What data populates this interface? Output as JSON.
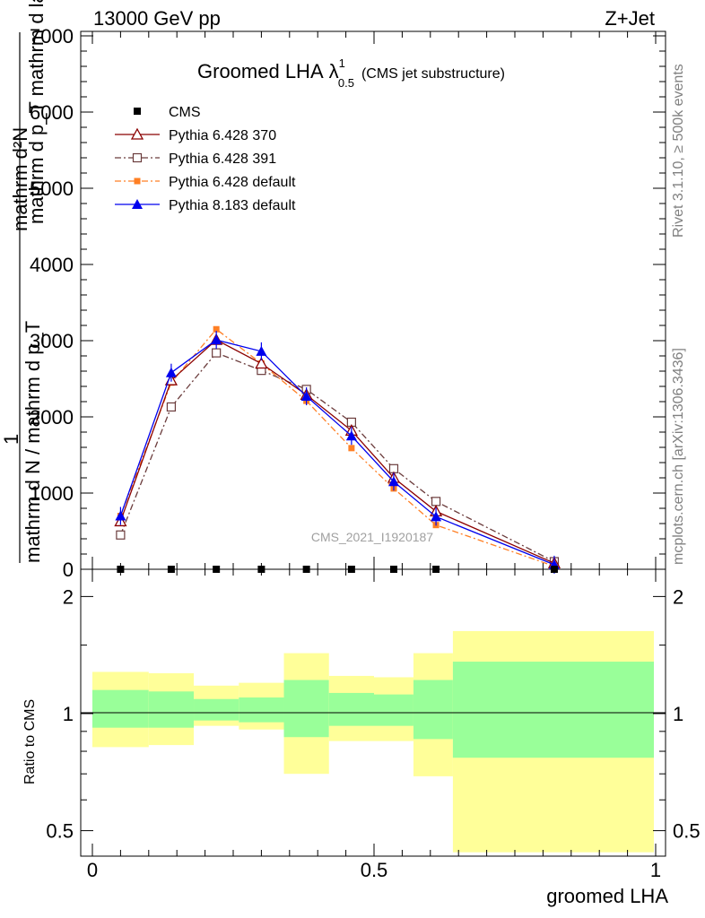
{
  "header": {
    "left": "13000 GeV pp",
    "right": "Z+Jet"
  },
  "side_labels": {
    "rivet": "Rivet 3.1.10, ≥ 500k events",
    "mcplots": "mcplots.cern.ch [arXiv:1306.3436]"
  },
  "watermark": "CMS_2021_I1920187",
  "main_title": {
    "text": "Groomed LHA",
    "lambda": "λ",
    "sup": "1",
    "sub": "0.5",
    "note": "(CMS jet substructure)"
  },
  "ylabel_main": {
    "line1": "mathrm d²N",
    "line2": "mathrm d p_T mathrm d lambda",
    "line3": "1",
    "line4": "mathrm d N / mathrm d p_T"
  },
  "ratio_ylabel": "Ratio to CMS",
  "xlabel": "groomed LHA",
  "colors": {
    "cms": "#000000",
    "p370": "#8b0000",
    "p391": "#6b3c3c",
    "p6def": "#ff7f24",
    "p8": "#0000ee",
    "band_outer": "#ffff99",
    "band_inner": "#99ff99"
  },
  "chart_data": {
    "type": "line",
    "x": [
      0.05,
      0.14,
      0.22,
      0.3,
      0.38,
      0.46,
      0.535,
      0.61,
      0.82
    ],
    "xlim": [
      -0.02,
      1.0
    ],
    "ylim": [
      0,
      7000
    ],
    "yticks": [
      {
        "v": 0,
        "label": "0"
      },
      {
        "v": 1000,
        "label": "1000"
      },
      {
        "v": 2000,
        "label": "2000"
      },
      {
        "v": 3000,
        "label": "3000"
      },
      {
        "v": 4000,
        "label": "4000"
      },
      {
        "v": 5000,
        "label": "5000"
      },
      {
        "v": 6000,
        "label": "6000"
      },
      {
        "v": 7000,
        "label": "7000"
      }
    ],
    "xticks": [
      {
        "v": 0,
        "label": "0"
      },
      {
        "v": 0.5,
        "label": "0.5"
      },
      {
        "v": 1,
        "label": "1"
      }
    ],
    "series": [
      {
        "name": "CMS",
        "key": "cms",
        "values": [
          0,
          0,
          0,
          0,
          0,
          0,
          0,
          0,
          0
        ]
      },
      {
        "name": "Pythia 6.428 370",
        "key": "p370",
        "values": [
          630,
          2480,
          3010,
          2700,
          2290,
          1820,
          1200,
          760,
          80
        ]
      },
      {
        "name": "Pythia 6.428 391",
        "key": "p391",
        "values": [
          450,
          2130,
          2840,
          2610,
          2360,
          1930,
          1320,
          890,
          100
        ]
      },
      {
        "name": "Pythia 6.428 default",
        "key": "p6def",
        "values": [
          700,
          2450,
          3150,
          2700,
          2210,
          1590,
          1060,
          580,
          40
        ]
      },
      {
        "name": "Pythia 8.183 default",
        "key": "p8",
        "values": [
          700,
          2580,
          3010,
          2860,
          2270,
          1750,
          1150,
          690,
          60
        ]
      }
    ],
    "ratio": {
      "ylim_log": [
        0.43,
        2.35
      ],
      "yticks": [
        {
          "v": 0.5,
          "label": "0.5"
        },
        {
          "v": 1,
          "label": "1"
        },
        {
          "v": 2,
          "label": "2"
        }
      ],
      "bins": [
        {
          "x0": 0.0,
          "x1": 0.1,
          "outer": [
            0.82,
            1.28
          ],
          "inner": [
            0.92,
            1.15
          ]
        },
        {
          "x0": 0.1,
          "x1": 0.18,
          "outer": [
            0.83,
            1.27
          ],
          "inner": [
            0.92,
            1.14
          ]
        },
        {
          "x0": 0.18,
          "x1": 0.26,
          "outer": [
            0.93,
            1.18
          ],
          "inner": [
            0.96,
            1.09
          ]
        },
        {
          "x0": 0.26,
          "x1": 0.34,
          "outer": [
            0.91,
            1.2
          ],
          "inner": [
            0.95,
            1.1
          ]
        },
        {
          "x0": 0.34,
          "x1": 0.42,
          "outer": [
            0.7,
            1.43
          ],
          "inner": [
            0.87,
            1.22
          ]
        },
        {
          "x0": 0.42,
          "x1": 0.5,
          "outer": [
            0.85,
            1.25
          ],
          "inner": [
            0.93,
            1.13
          ]
        },
        {
          "x0": 0.5,
          "x1": 0.57,
          "outer": [
            0.85,
            1.24
          ],
          "inner": [
            0.93,
            1.12
          ]
        },
        {
          "x0": 0.57,
          "x1": 0.64,
          "outer": [
            0.69,
            1.43
          ],
          "inner": [
            0.86,
            1.22
          ]
        },
        {
          "x0": 0.64,
          "x1": 1.0,
          "outer": [
            0.44,
            1.63
          ],
          "inner": [
            0.77,
            1.36
          ]
        }
      ]
    }
  }
}
